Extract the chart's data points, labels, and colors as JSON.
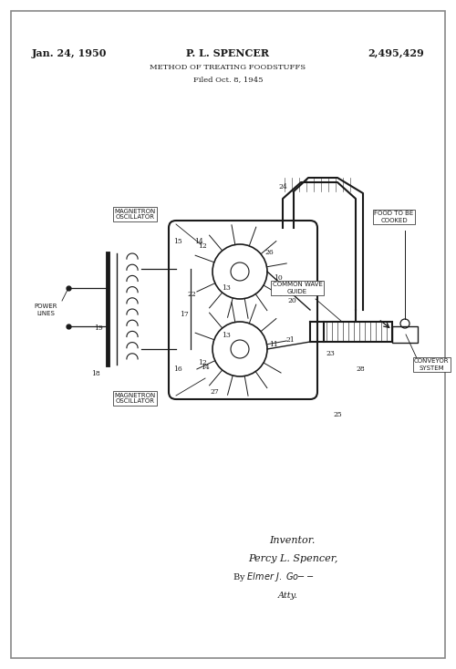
{
  "bg_color": "#ffffff",
  "border_color": "#444444",
  "line_color": "#1a1a1a",
  "title_date": "Jan. 24, 1950",
  "title_inventor": "P. L. SPENCER",
  "title_patent": "2,495,429",
  "title_method": "METHOD OF TREATING FOODSTUFFS",
  "title_filed": "Filed Oct. 8, 1945",
  "inventor_label": "Inventor.",
  "inventor_name": "Percy L. Spencer,",
  "inventor_by": "By",
  "inventor_atty": "Atty.",
  "label_magnetron_top": "MAGNETRON\nOSCILLATOR",
  "label_magnetron_bot": "MAGNETRON\nOSCILLATOR",
  "label_power_lines": "POWER\nLINES",
  "label_common_wave": "COMMON WAVE\nGUIDE",
  "label_food": "FOOD TO BE\nCOOKED",
  "label_conveyor": "CONVEYOR\nSYSTEM",
  "fig_width": 5.0,
  "fig_height": 7.34,
  "dpi": 100
}
